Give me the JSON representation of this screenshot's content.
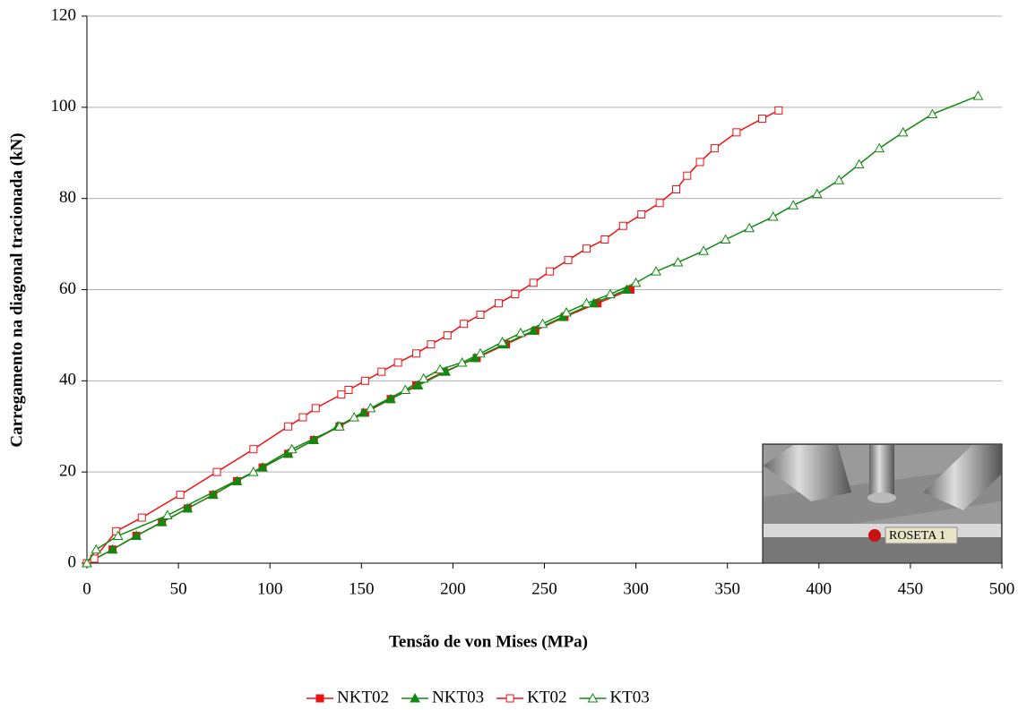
{
  "chart_data": {
    "type": "line",
    "xlabel": "Tensão de von Mises (MPa)",
    "ylabel": "Carregamento na diagonal tracionada (kN)",
    "xlim": [
      0,
      500
    ],
    "xticks": [
      0,
      50,
      100,
      150,
      200,
      250,
      300,
      350,
      400,
      450,
      500
    ],
    "ylim": [
      0,
      120
    ],
    "yticks": [
      0,
      20,
      40,
      60,
      80,
      100,
      120
    ],
    "grid": true,
    "legend": "bottom",
    "inset_label": "ROSETA 1",
    "series": [
      {
        "name": "NKT02",
        "color": "#ee1111",
        "marker": "square-filled",
        "x": [
          0,
          14,
          27,
          41,
          55,
          69,
          82,
          96,
          110,
          124,
          138,
          152,
          166,
          180,
          195,
          213,
          229,
          245,
          261,
          279,
          297
        ],
        "y": [
          0,
          3,
          6,
          9,
          12,
          15,
          18,
          21,
          24,
          27,
          30,
          33,
          36,
          39,
          42,
          45,
          48,
          51,
          54,
          57,
          60
        ]
      },
      {
        "name": "NKT03",
        "color": "#118811",
        "marker": "triangle-filled",
        "x": [
          0,
          14,
          27,
          41,
          55,
          69,
          82,
          96,
          110,
          124,
          137,
          151,
          166,
          181,
          196,
          212,
          228,
          244,
          260,
          277,
          295
        ],
        "y": [
          0,
          3,
          6,
          9,
          12,
          15,
          18,
          21,
          24,
          27,
          30,
          33,
          36,
          39,
          42,
          45,
          48,
          51,
          54,
          57,
          60
        ]
      },
      {
        "name": "KT02",
        "color": "#ee1111",
        "marker": "square-open",
        "x": [
          0,
          4,
          16,
          30,
          51,
          71,
          91,
          110,
          118,
          125,
          139,
          143,
          152,
          161,
          170,
          180,
          188,
          197,
          206,
          215,
          225,
          234,
          244,
          253,
          263,
          273,
          283,
          293,
          303,
          313,
          322,
          328,
          335,
          343,
          355,
          369,
          378
        ],
        "y": [
          0,
          1,
          7,
          10,
          15,
          20,
          25,
          30,
          32,
          34,
          37,
          38,
          40,
          42,
          44,
          46,
          48,
          50,
          52.5,
          54.5,
          57,
          59,
          61.5,
          64,
          66.5,
          69,
          71,
          74,
          76.5,
          79,
          82,
          85,
          88,
          91,
          94.5,
          97.5,
          99.3
        ]
      },
      {
        "name": "KT03",
        "color": "#118811",
        "marker": "triangle-open",
        "x": [
          0,
          5,
          17,
          44,
          91,
          112,
          138,
          146,
          155,
          174,
          184,
          193,
          205,
          215,
          227,
          237,
          249,
          262,
          273,
          286,
          300,
          311,
          323,
          337,
          349,
          362,
          375,
          386,
          399,
          411,
          422,
          433,
          446,
          462,
          487
        ],
        "y": [
          0,
          3,
          6,
          10.5,
          20,
          25,
          30,
          32,
          34,
          38,
          40.5,
          42.5,
          44,
          46,
          48.5,
          50.5,
          52.5,
          55,
          57,
          59,
          61.5,
          64,
          66,
          68.5,
          71,
          73.5,
          76,
          78.5,
          81,
          84,
          87.5,
          91,
          94.5,
          98.5,
          102.5
        ]
      }
    ]
  }
}
